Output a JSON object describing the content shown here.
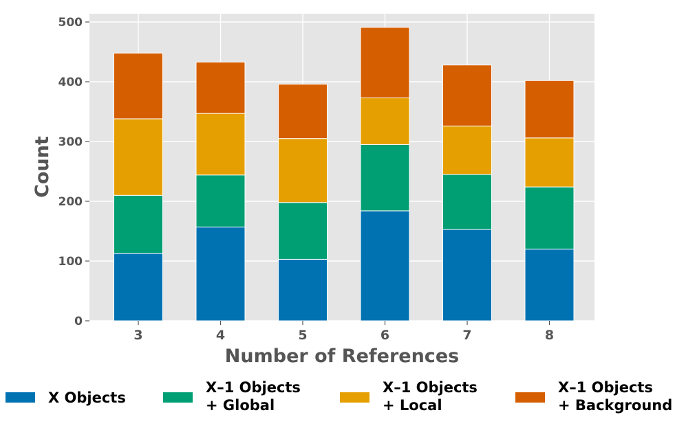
{
  "chart_data": {
    "type": "bar",
    "stacked": true,
    "categories": [
      "3",
      "4",
      "5",
      "6",
      "7",
      "8"
    ],
    "series": [
      {
        "name": "X Objects",
        "color": "#0072b2",
        "values": [
          113,
          157,
          103,
          184,
          153,
          120
        ]
      },
      {
        "name": "X–1 Objects + Global",
        "color": "#009e73",
        "values": [
          97,
          87,
          95,
          111,
          92,
          104
        ]
      },
      {
        "name": "X–1 Objects + Local",
        "color": "#e69f00",
        "values": [
          128,
          103,
          107,
          78,
          81,
          82
        ]
      },
      {
        "name": "X–1 Objects + Background",
        "color": "#d55e00",
        "values": [
          110,
          86,
          91,
          118,
          102,
          96
        ]
      }
    ],
    "legend_lines": [
      [
        "X Objects"
      ],
      [
        "X–1 Objects",
        "+ Global"
      ],
      [
        "X–1 Objects",
        "+ Local"
      ],
      [
        "X–1 Objects",
        "+ Background"
      ]
    ],
    "xlabel": "Number of References",
    "ylabel": "Count",
    "ylim": [
      0,
      520
    ],
    "yticks": [
      0,
      100,
      200,
      300,
      400,
      500
    ],
    "grid": true,
    "legend_position": "bottom"
  }
}
